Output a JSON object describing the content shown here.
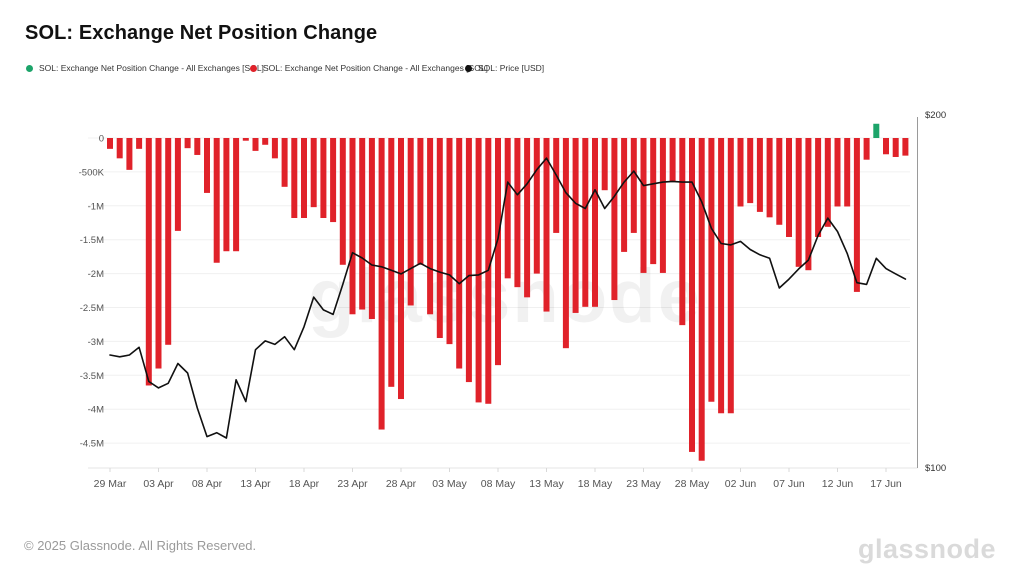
{
  "title": "SOL: Exchange Net Position Change",
  "legend": [
    {
      "label": "SOL: Exchange Net Position Change - All Exchanges [SOL]",
      "color": "#1ca46a"
    },
    {
      "label": "SOL: Exchange Net Position Change - All Exchanges [SOL]",
      "color": "#e0222a"
    },
    {
      "label": "SOL: Price [USD]",
      "color": "#111111"
    }
  ],
  "watermark": "glassnode",
  "footer": {
    "copyright": "© 2025 Glassnode. All Rights Reserved.",
    "logo_text": "glassnode"
  },
  "colors": {
    "bar_negative": "#e0222a",
    "bar_positive": "#1ca46a",
    "price_line": "#111111",
    "gridline": "#f0f0f0",
    "axis_line": "#9a9a9a",
    "tick_text": "#555555",
    "baseline": "#e6e6e6",
    "tick_mark": "#d8d8d8"
  },
  "chart_data": {
    "type": "bar",
    "title": "SOL: Exchange Net Position Change",
    "x_start_label": "29 Mar",
    "x_tick_labels": [
      "29 Mar",
      "03 Apr",
      "08 Apr",
      "13 Apr",
      "18 Apr",
      "23 Apr",
      "28 Apr",
      "03 May",
      "08 May",
      "13 May",
      "18 May",
      "23 May",
      "28 May",
      "02 Jun",
      "07 Jun",
      "12 Jun",
      "17 Jun"
    ],
    "x_tick_day_indices": [
      0,
      5,
      10,
      15,
      20,
      25,
      30,
      35,
      40,
      45,
      50,
      55,
      60,
      65,
      70,
      75,
      80
    ],
    "left_axis": {
      "unit": "SOL (millions)",
      "tick_labels": [
        "0",
        "-500K",
        "-1M",
        "-1.5M",
        "-2M",
        "-2.5M",
        "-3M",
        "-3.5M",
        "-4M",
        "-4.5M"
      ],
      "tick_values": [
        0,
        -0.5,
        -1,
        -1.5,
        -2,
        -2.5,
        -3,
        -3.5,
        -4,
        -4.5
      ],
      "ylim": [
        -4.9,
        0.35
      ]
    },
    "right_axis": {
      "unit": "USD",
      "tick_labels": [
        "$200",
        "$100"
      ],
      "tick_values": [
        200,
        100
      ],
      "ylim": [
        100,
        200
      ]
    },
    "series": [
      {
        "name": "SOL: Exchange Net Position Change - All Exchanges [SOL]",
        "type": "bar",
        "axis": "left",
        "values_millions": [
          -0.16,
          -0.3,
          -0.47,
          -0.16,
          -3.65,
          -3.4,
          -3.05,
          -1.37,
          -0.15,
          -0.25,
          -0.81,
          -1.84,
          -1.67,
          -1.67,
          -0.04,
          -0.19,
          -0.1,
          -0.3,
          -0.72,
          -1.18,
          -1.18,
          -1.02,
          -1.18,
          -1.24,
          -1.87,
          -2.6,
          -2.53,
          -2.67,
          -4.3,
          -3.67,
          -3.85,
          -2.47,
          -1.87,
          -2.6,
          -2.95,
          -3.04,
          -3.4,
          -3.6,
          -3.9,
          -3.92,
          -3.35,
          -2.07,
          -2.2,
          -2.35,
          -2.0,
          -2.56,
          -1.4,
          -3.1,
          -2.58,
          -2.49,
          -2.49,
          -0.77,
          -2.39,
          -1.68,
          -1.4,
          -1.99,
          -1.86,
          -1.99,
          -0.65,
          -2.76,
          -4.63,
          -4.76,
          -3.89,
          -4.06,
          -4.06,
          -1.01,
          -0.96,
          -1.09,
          -1.17,
          -1.28,
          -1.46,
          -1.9,
          -1.95,
          -1.46,
          -1.31,
          -1.01,
          -1.01,
          -2.27,
          -0.32,
          0.21,
          -0.24,
          -0.28,
          -0.26
        ]
      },
      {
        "name": "SOL: Price [USD]",
        "type": "line",
        "axis": "right",
        "values_usd": [
          132.0,
          131.5,
          132.0,
          134.2,
          124.5,
          122.7,
          124.0,
          129.6,
          126.9,
          117.0,
          108.9,
          110.0,
          108.5,
          125.0,
          118.8,
          133.5,
          136.0,
          135.0,
          137.2,
          133.5,
          140.0,
          148.4,
          144.8,
          143.5,
          152.0,
          161.0,
          159.5,
          157.5,
          157.0,
          156.0,
          155.0,
          156.5,
          158.0,
          156.5,
          155.5,
          154.7,
          152.2,
          154.5,
          154.7,
          156.0,
          165.0,
          181.0,
          177.4,
          180.5,
          184.5,
          187.8,
          183.0,
          178.0,
          175.0,
          173.5,
          178.8,
          173.5,
          177.0,
          181.0,
          184.1,
          180.0,
          180.5,
          181.0,
          181.2,
          181.0,
          181.0,
          175.4,
          167.9,
          163.6,
          163.2,
          164.2,
          161.9,
          160.4,
          159.4,
          151.0,
          153.5,
          156.4,
          158.9,
          165.9,
          170.8,
          167.0,
          160.8,
          152.5,
          152.0,
          159.4,
          156.5,
          155.0,
          153.5
        ]
      }
    ]
  }
}
